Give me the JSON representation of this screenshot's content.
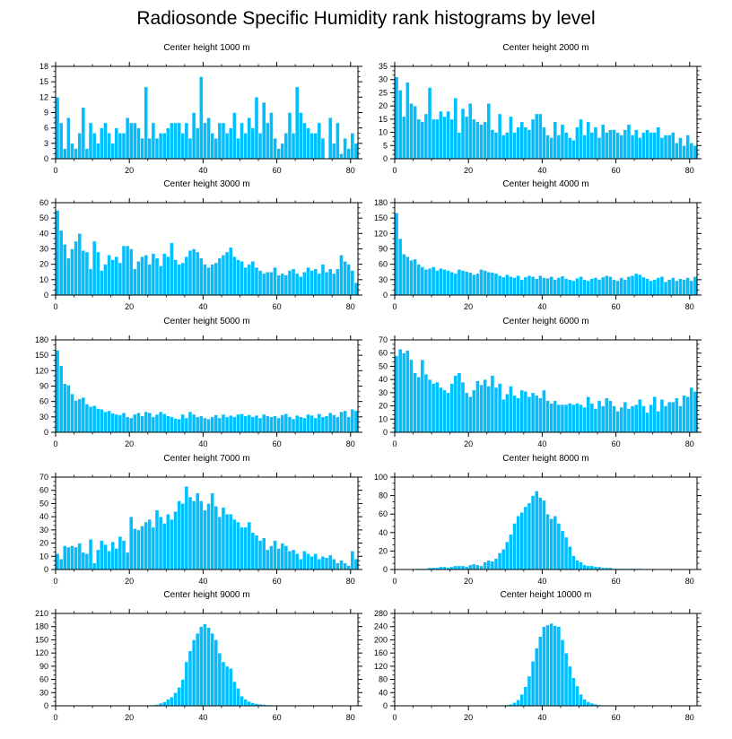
{
  "title": "Radiosonde Specific Humidity rank histograms by level",
  "colors": {
    "bar": "#00bfff",
    "bar_edge": "#ffffff",
    "axis": "#000000"
  },
  "chart_data": [
    {
      "type": "bar",
      "title": "Center height 1000 m",
      "xlim": [
        0,
        82
      ],
      "ylim": [
        0,
        18
      ],
      "xticks": [
        0,
        20,
        40,
        60,
        80
      ],
      "xtick_labels": [
        "0",
        "20",
        "40",
        "60",
        "80"
      ],
      "yticks": [
        0,
        3,
        6,
        9,
        12,
        15,
        18
      ],
      "ytick_labels": [
        "0",
        "3",
        "6",
        "9",
        "12",
        "15",
        "18"
      ],
      "values": [
        12,
        7,
        2,
        8,
        3,
        2,
        5,
        10,
        2,
        7,
        5,
        3,
        6,
        7,
        5,
        3,
        6,
        5,
        5,
        8,
        7,
        7,
        6,
        4,
        14,
        4,
        7,
        4,
        5,
        5,
        6,
        7,
        7,
        7,
        5,
        7,
        4,
        9,
        6,
        16,
        7,
        8,
        5,
        4,
        7,
        7,
        5,
        6,
        9,
        4,
        7,
        5,
        8,
        6,
        12,
        5,
        11,
        7,
        9,
        4,
        2,
        3,
        5,
        9,
        5,
        14,
        9,
        7,
        6,
        5,
        5,
        7,
        4,
        0,
        8,
        3,
        7,
        1,
        4,
        2,
        5,
        3
      ]
    },
    {
      "type": "bar",
      "title": "Center height 2000 m",
      "xlim": [
        0,
        82
      ],
      "ylim": [
        0,
        35
      ],
      "xticks": [
        0,
        20,
        40,
        60,
        80
      ],
      "xtick_labels": [
        "0",
        "20",
        "40",
        "60",
        "80"
      ],
      "yticks": [
        0,
        5,
        10,
        15,
        20,
        25,
        30,
        35
      ],
      "ytick_labels": [
        "0",
        "5",
        "10",
        "15",
        "20",
        "25",
        "30",
        "35"
      ],
      "values": [
        31,
        26,
        16,
        29,
        21,
        20,
        15,
        14,
        17,
        27,
        15,
        15,
        18,
        16,
        18,
        15,
        23,
        10,
        19,
        16,
        21,
        15,
        14,
        13,
        14,
        21,
        11,
        10,
        17,
        9,
        10,
        16,
        10,
        12,
        14,
        12,
        11,
        15,
        17,
        17,
        12,
        9,
        8,
        14,
        9,
        13,
        10,
        8,
        7,
        12,
        15,
        9,
        14,
        10,
        12,
        8,
        13,
        10,
        11,
        11,
        10,
        9,
        11,
        13,
        9,
        11,
        8,
        10,
        11,
        10,
        10,
        12,
        8,
        9,
        9,
        10,
        6,
        8,
        5,
        9,
        6,
        5
      ]
    },
    {
      "type": "bar",
      "title": "Center height 3000 m",
      "xlim": [
        0,
        82
      ],
      "ylim": [
        0,
        60
      ],
      "xticks": [
        0,
        20,
        40,
        60,
        80
      ],
      "xtick_labels": [
        "0",
        "20",
        "40",
        "60",
        "80"
      ],
      "yticks": [
        0,
        10,
        20,
        30,
        40,
        50,
        60
      ],
      "ytick_labels": [
        "0",
        "10",
        "20",
        "30",
        "40",
        "50",
        "60"
      ],
      "values": [
        55,
        42,
        33,
        24,
        30,
        35,
        40,
        29,
        28,
        17,
        35,
        28,
        16,
        20,
        26,
        23,
        25,
        21,
        32,
        32,
        30,
        17,
        22,
        25,
        26,
        20,
        27,
        24,
        19,
        27,
        25,
        34,
        23,
        20,
        21,
        25,
        29,
        30,
        28,
        24,
        20,
        18,
        20,
        21,
        24,
        26,
        28,
        31,
        25,
        23,
        22,
        18,
        20,
        22,
        18,
        16,
        14,
        15,
        15,
        18,
        13,
        14,
        13,
        16,
        17,
        14,
        12,
        15,
        18,
        16,
        17,
        14,
        20,
        15,
        17,
        14,
        17,
        26,
        22,
        20,
        16,
        8
      ]
    },
    {
      "type": "bar",
      "title": "Center height 4000 m",
      "xlim": [
        0,
        82
      ],
      "ylim": [
        0,
        180
      ],
      "xticks": [
        0,
        20,
        40,
        60,
        80
      ],
      "xtick_labels": [
        "0",
        "20",
        "40",
        "60",
        "80"
      ],
      "yticks": [
        0,
        30,
        60,
        90,
        120,
        150,
        180
      ],
      "ytick_labels": [
        "0",
        "30",
        "60",
        "90",
        "120",
        "150",
        "180"
      ],
      "values": [
        160,
        110,
        80,
        75,
        68,
        70,
        60,
        55,
        50,
        52,
        55,
        48,
        52,
        50,
        48,
        45,
        42,
        50,
        48,
        46,
        44,
        40,
        42,
        50,
        48,
        45,
        44,
        42,
        38,
        35,
        40,
        36,
        34,
        38,
        30,
        35,
        38,
        36,
        32,
        38,
        34,
        33,
        36,
        30,
        34,
        37,
        32,
        30,
        28,
        33,
        36,
        30,
        28,
        32,
        34,
        30,
        35,
        38,
        36,
        30,
        28,
        34,
        30,
        36,
        38,
        42,
        40,
        35,
        32,
        28,
        30,
        34,
        36,
        26,
        30,
        34,
        28,
        32,
        30,
        34,
        28,
        36
      ]
    },
    {
      "type": "bar",
      "title": "Center height 5000 m",
      "xlim": [
        0,
        82
      ],
      "ylim": [
        0,
        180
      ],
      "xticks": [
        0,
        20,
        40,
        60,
        80
      ],
      "xtick_labels": [
        "0",
        "20",
        "40",
        "60",
        "80"
      ],
      "yticks": [
        0,
        30,
        60,
        90,
        120,
        150,
        180
      ],
      "ytick_labels": [
        "0",
        "30",
        "60",
        "90",
        "120",
        "150",
        "180"
      ],
      "values": [
        160,
        130,
        95,
        92,
        75,
        62,
        65,
        68,
        55,
        50,
        52,
        46,
        45,
        40,
        42,
        37,
        35,
        34,
        38,
        30,
        28,
        35,
        38,
        32,
        40,
        38,
        30,
        35,
        40,
        36,
        32,
        30,
        27,
        26,
        35,
        28,
        40,
        35,
        30,
        32,
        28,
        26,
        30,
        34,
        28,
        35,
        30,
        33,
        30,
        35,
        36,
        32,
        34,
        30,
        33,
        28,
        35,
        32,
        30,
        32,
        28,
        34,
        36,
        30,
        26,
        33,
        30,
        28,
        35,
        33,
        28,
        36,
        30,
        32,
        38,
        34,
        30,
        40,
        42,
        30,
        45,
        42
      ]
    },
    {
      "type": "bar",
      "title": "Center height 6000 m",
      "xlim": [
        0,
        82
      ],
      "ylim": [
        0,
        70
      ],
      "xticks": [
        0,
        20,
        40,
        60,
        80
      ],
      "xtick_labels": [
        "0",
        "20",
        "40",
        "60",
        "80"
      ],
      "yticks": [
        0,
        10,
        20,
        30,
        40,
        50,
        60,
        70
      ],
      "ytick_labels": [
        "0",
        "10",
        "20",
        "30",
        "40",
        "50",
        "60",
        "70"
      ],
      "values": [
        58,
        63,
        60,
        62,
        55,
        45,
        42,
        55,
        44,
        40,
        37,
        38,
        34,
        32,
        30,
        37,
        43,
        45,
        38,
        30,
        27,
        32,
        39,
        36,
        40,
        35,
        43,
        34,
        37,
        25,
        29,
        35,
        28,
        26,
        32,
        31,
        27,
        30,
        28,
        26,
        32,
        24,
        22,
        24,
        21,
        21,
        21,
        22,
        21,
        22,
        21,
        19,
        27,
        22,
        18,
        24,
        20,
        26,
        24,
        20,
        16,
        19,
        23,
        18,
        20,
        21,
        25,
        20,
        15,
        21,
        27,
        16,
        25,
        20,
        23,
        23,
        26,
        20,
        28,
        27,
        34,
        31
      ]
    },
    {
      "type": "bar",
      "title": "Center height 7000 m",
      "xlim": [
        0,
        82
      ],
      "ylim": [
        0,
        70
      ],
      "xticks": [
        0,
        20,
        40,
        60,
        80
      ],
      "xtick_labels": [
        "0",
        "20",
        "40",
        "60",
        "80"
      ],
      "yticks": [
        0,
        10,
        20,
        30,
        40,
        50,
        60,
        70
      ],
      "ytick_labels": [
        "0",
        "10",
        "20",
        "30",
        "40",
        "50",
        "60",
        "70"
      ],
      "values": [
        12,
        8,
        18,
        17,
        18,
        17,
        20,
        13,
        12,
        23,
        5,
        15,
        22,
        19,
        14,
        21,
        16,
        25,
        22,
        13,
        40,
        31,
        30,
        33,
        36,
        38,
        32,
        45,
        40,
        35,
        42,
        38,
        44,
        52,
        50,
        63,
        55,
        52,
        58,
        52,
        45,
        50,
        58,
        48,
        40,
        47,
        42,
        42,
        38,
        36,
        32,
        32,
        36,
        28,
        26,
        22,
        24,
        15,
        18,
        22,
        16,
        20,
        18,
        14,
        15,
        12,
        8,
        14,
        12,
        10,
        12,
        8,
        10,
        9,
        11,
        8,
        5,
        7,
        5,
        3,
        14,
        8
      ]
    },
    {
      "type": "bar",
      "title": "Center height 8000 m",
      "xlim": [
        0,
        82
      ],
      "ylim": [
        0,
        100
      ],
      "xticks": [
        0,
        20,
        40,
        60,
        80
      ],
      "xtick_labels": [
        "0",
        "20",
        "40",
        "60",
        "80"
      ],
      "yticks": [
        0,
        20,
        40,
        60,
        80,
        100
      ],
      "ytick_labels": [
        "0",
        "20",
        "40",
        "60",
        "80",
        "100"
      ],
      "values": [
        0,
        0,
        0,
        0,
        0,
        0,
        1,
        1,
        1,
        2,
        2,
        2,
        3,
        3,
        2,
        3,
        4,
        4,
        4,
        3,
        5,
        6,
        5,
        4,
        8,
        10,
        9,
        12,
        18,
        22,
        30,
        38,
        50,
        58,
        62,
        68,
        72,
        80,
        85,
        78,
        75,
        60,
        55,
        58,
        50,
        42,
        35,
        25,
        15,
        10,
        8,
        5,
        4,
        4,
        3,
        3,
        2,
        2,
        2,
        1,
        1,
        1,
        1,
        1,
        1,
        1,
        1,
        0,
        0,
        0,
        0,
        0,
        0,
        0,
        0,
        0,
        0,
        0,
        0,
        0,
        0,
        0
      ]
    },
    {
      "type": "bar",
      "title": "Center height 9000 m",
      "xlim": [
        0,
        82
      ],
      "ylim": [
        0,
        210
      ],
      "xticks": [
        0,
        20,
        40,
        60,
        80
      ],
      "xtick_labels": [
        "0",
        "20",
        "40",
        "60",
        "80"
      ],
      "yticks": [
        0,
        30,
        60,
        90,
        120,
        150,
        180,
        210
      ],
      "ytick_labels": [
        "0",
        "30",
        "60",
        "90",
        "120",
        "150",
        "180",
        "210"
      ],
      "values": [
        0,
        0,
        0,
        0,
        0,
        0,
        0,
        0,
        0,
        0,
        0,
        0,
        0,
        0,
        0,
        0,
        0,
        0,
        0,
        0,
        0,
        0,
        0,
        0,
        0,
        1,
        2,
        3,
        6,
        9,
        15,
        20,
        30,
        42,
        60,
        100,
        125,
        150,
        165,
        180,
        186,
        178,
        165,
        150,
        120,
        100,
        90,
        85,
        55,
        40,
        22,
        15,
        10,
        7,
        5,
        4,
        3,
        2,
        2,
        1,
        1,
        1,
        1,
        1,
        1,
        1,
        0,
        0,
        0,
        0,
        0,
        0,
        0,
        0,
        0,
        0,
        0,
        0,
        0,
        0,
        0,
        0
      ]
    },
    {
      "type": "bar",
      "title": "Center height 10000 m",
      "xlim": [
        0,
        82
      ],
      "ylim": [
        0,
        280
      ],
      "xticks": [
        0,
        20,
        40,
        60,
        80
      ],
      "xtick_labels": [
        "0",
        "20",
        "40",
        "60",
        "80"
      ],
      "yticks": [
        0,
        40,
        80,
        120,
        160,
        200,
        240,
        280
      ],
      "ytick_labels": [
        "0",
        "40",
        "80",
        "120",
        "160",
        "200",
        "240",
        "280"
      ],
      "values": [
        0,
        0,
        0,
        0,
        0,
        0,
        0,
        0,
        0,
        0,
        0,
        0,
        0,
        0,
        0,
        0,
        0,
        0,
        0,
        0,
        0,
        0,
        0,
        0,
        0,
        0,
        0,
        0,
        1,
        2,
        3,
        5,
        10,
        18,
        35,
        58,
        90,
        135,
        175,
        210,
        240,
        245,
        250,
        243,
        240,
        200,
        160,
        120,
        85,
        60,
        35,
        20,
        12,
        8,
        5,
        3,
        2,
        2,
        1,
        1,
        1,
        1,
        1,
        1,
        0,
        0,
        0,
        0,
        0,
        0,
        0,
        0,
        0,
        0,
        0,
        0,
        0,
        0,
        0,
        0,
        0,
        0
      ]
    }
  ]
}
